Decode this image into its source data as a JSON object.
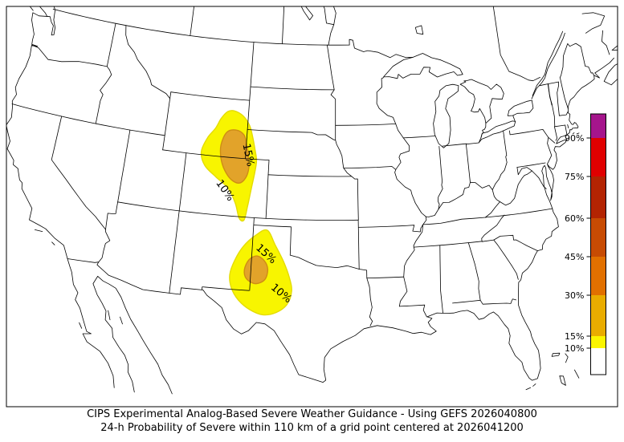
{
  "caption": {
    "line1": "CIPS Experimental Analog-Based Severe Weather Guidance - Using GEFS 2026040800",
    "line2": "24-h Probability of Severe within 110 km of a grid point centered at 2026041200"
  },
  "colorbar": {
    "tick_labels": [
      "90%",
      "75%",
      "60%",
      "45%",
      "30%",
      "15%",
      "10%"
    ],
    "segment_colors_top_to_bottom": [
      "#a5158c",
      "#e00000",
      "#b32402",
      "#c74b03",
      "#e17000",
      "#e9ac00",
      "#fbf500",
      "#ffffff"
    ]
  },
  "chart_data": {
    "type": "heatmap",
    "subtype": "filled-contour-probability-map",
    "title": "CIPS Experimental Analog-Based Severe Weather Guidance - Using GEFS 2026040800",
    "subtitle": "24-h Probability of Severe within 110 km of a grid point centered at 2026041200",
    "variable": "24-h probability of severe weather within 110 km of a grid point",
    "units": "%",
    "levels_percent": [
      10,
      15,
      30,
      45,
      60,
      75,
      90
    ],
    "level_styles": {
      "10": {
        "fill": "#f8f500",
        "line": "#e4dc00"
      },
      "15": {
        "fill": "#e2a32a",
        "line": "#cf8d14"
      }
    },
    "legend_position": "right-inside-map",
    "regions": [
      {
        "name": "northern-high-plains",
        "contours": [
          {
            "level_percent": 10,
            "polygon_lonlat": [
              [
                -105.3,
                44.2
              ],
              [
                -104.5,
                43.9
              ],
              [
                -103.9,
                43.3
              ],
              [
                -103.55,
                42.5
              ],
              [
                -103.3,
                41.7
              ],
              [
                -103.1,
                40.9
              ],
              [
                -103.2,
                40.0
              ],
              [
                -103.4,
                38.9
              ],
              [
                -103.6,
                37.7
              ],
              [
                -103.8,
                36.8
              ],
              [
                -104.2,
                36.9
              ],
              [
                -104.6,
                37.9
              ],
              [
                -105.3,
                38.9
              ],
              [
                -106.4,
                39.6
              ],
              [
                -107.4,
                40.3
              ],
              [
                -107.8,
                41.2
              ],
              [
                -107.4,
                42.2
              ],
              [
                -106.8,
                42.9
              ],
              [
                -106.4,
                43.6
              ],
              [
                -105.9,
                44.1
              ]
            ]
          },
          {
            "level_percent": 15,
            "polygon_lonlat": [
              [
                -105.8,
                42.7
              ],
              [
                -105.0,
                42.9
              ],
              [
                -104.3,
                42.6
              ],
              [
                -104.0,
                41.9
              ],
              [
                -103.8,
                41.2
              ],
              [
                -103.7,
                40.4
              ],
              [
                -103.9,
                39.7
              ],
              [
                -104.4,
                39.3
              ],
              [
                -105.1,
                39.5
              ],
              [
                -105.7,
                40.1
              ],
              [
                -106.1,
                40.9
              ],
              [
                -106.2,
                41.8
              ]
            ]
          }
        ]
      },
      {
        "name": "southern-high-plains",
        "contours": [
          {
            "level_percent": 10,
            "polygon_lonlat": [
              [
                -101.9,
                36.2
              ],
              [
                -101.2,
                35.2
              ],
              [
                -100.5,
                34.1
              ],
              [
                -100.0,
                33.0
              ],
              [
                -99.8,
                32.1
              ],
              [
                -100.1,
                31.2
              ],
              [
                -100.9,
                30.6
              ],
              [
                -101.9,
                30.4
              ],
              [
                -102.9,
                30.7
              ],
              [
                -103.8,
                31.3
              ],
              [
                -104.4,
                32.1
              ],
              [
                -104.6,
                33.0
              ],
              [
                -104.3,
                34.0
              ],
              [
                -103.7,
                35.0
              ],
              [
                -102.8,
                35.8
              ]
            ]
          },
          {
            "level_percent": 15,
            "polygon_lonlat": [
              [
                -102.6,
                34.4
              ],
              [
                -102.0,
                34.1
              ],
              [
                -101.7,
                33.5
              ],
              [
                -101.9,
                32.8
              ],
              [
                -102.6,
                32.5
              ],
              [
                -103.3,
                32.8
              ],
              [
                -103.5,
                33.4
              ],
              [
                -103.2,
                34.1
              ]
            ]
          }
        ]
      }
    ],
    "contour_labels": [
      {
        "text": "15%",
        "lon": -103.85,
        "lat": 41.25,
        "rotation_deg": 78
      },
      {
        "text": "10%",
        "lon": -105.55,
        "lat": 38.7,
        "rotation_deg": 55
      },
      {
        "text": "15%",
        "lon": -101.9,
        "lat": 34.55,
        "rotation_deg": 42
      },
      {
        "text": "10%",
        "lon": -100.6,
        "lat": 31.9,
        "rotation_deg": 40
      }
    ]
  }
}
